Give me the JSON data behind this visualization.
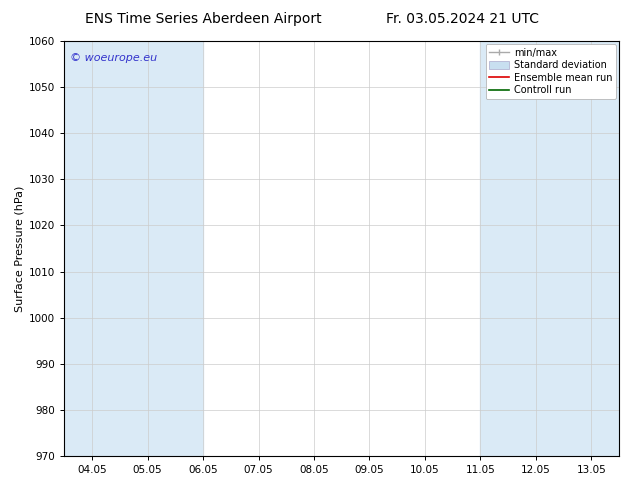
{
  "title_left": "ENS Time Series Aberdeen Airport",
  "title_right": "Fr. 03.05.2024 21 UTC",
  "ylabel": "Surface Pressure (hPa)",
  "ylim": [
    970,
    1060
  ],
  "yticks": [
    970,
    980,
    990,
    1000,
    1010,
    1020,
    1030,
    1040,
    1050,
    1060
  ],
  "xtick_labels": [
    "04.05",
    "05.05",
    "06.05",
    "07.05",
    "08.05",
    "09.05",
    "10.05",
    "11.05",
    "12.05",
    "13.05"
  ],
  "shaded_ranges": [
    [
      0,
      2
    ],
    [
      7,
      9
    ]
  ],
  "shade_color": "#daeaf6",
  "background_color": "#ffffff",
  "watermark": "© woeurope.eu",
  "watermark_color": "#3333cc",
  "legend_labels": [
    "min/max",
    "Standard deviation",
    "Ensemble mean run",
    "Controll run"
  ],
  "legend_colors": [
    "#999999",
    "#c5ddf0",
    "#ff0000",
    "#006600"
  ],
  "title_fontsize": 10,
  "axis_label_fontsize": 8,
  "tick_fontsize": 7.5,
  "legend_fontsize": 7
}
